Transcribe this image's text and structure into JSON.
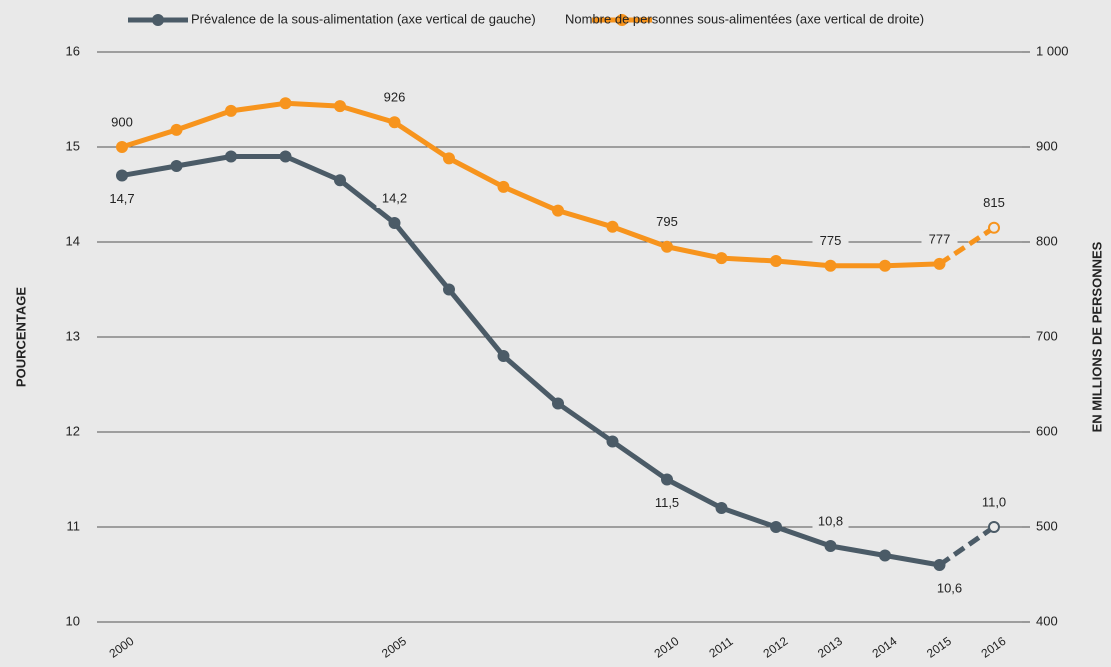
{
  "chart_data": {
    "type": "line",
    "x": [
      2000,
      2001,
      2002,
      2003,
      2004,
      2005,
      2006,
      2007,
      2008,
      2009,
      2010,
      2011,
      2012,
      2013,
      2014,
      2015,
      2016
    ],
    "xticks": [
      2000,
      2005,
      2010,
      2011,
      2012,
      2013,
      2014,
      2015,
      2016
    ],
    "ylabel": "POURCENTAGE",
    "y2label": "EN MILLIONS DE PERSONNES",
    "ylim": [
      10,
      16
    ],
    "yticks": [
      10,
      11,
      12,
      13,
      14,
      15,
      16
    ],
    "y2lim": [
      400,
      1000
    ],
    "y2ticks": [
      400,
      500,
      600,
      700,
      800,
      900,
      {
        "value": 1000,
        "label": "1 000"
      }
    ],
    "grid": true,
    "legend": "top",
    "dashed_from": 15,
    "series": [
      {
        "name": "Prévalence de la sous-alimentation (axe vertical de gauche)",
        "color": "#4b5b67",
        "values": [
          14.7,
          14.8,
          14.9,
          14.9,
          14.65,
          14.2,
          13.5,
          12.8,
          12.3,
          11.9,
          11.5,
          11.2,
          11.0,
          10.8,
          10.7,
          10.6,
          11.0
        ],
        "value_labels": [
          "14,7",
          null,
          null,
          null,
          null,
          "14,2",
          null,
          null,
          null,
          null,
          "11,5",
          null,
          null,
          "10,8",
          null,
          "10,6",
          "11,0"
        ]
      },
      {
        "name": "Nombre de personnes sous-alimentées (axe vertical de droite)",
        "color": "#f7941d",
        "axis": "y2",
        "values": [
          900,
          918,
          938,
          946,
          943,
          926,
          888,
          858,
          833,
          816,
          795,
          783,
          780,
          775,
          775,
          777,
          815
        ],
        "value_labels": [
          "900",
          null,
          null,
          null,
          null,
          "926",
          null,
          null,
          null,
          null,
          "795",
          null,
          null,
          "775",
          null,
          "777",
          "815"
        ]
      }
    ]
  }
}
